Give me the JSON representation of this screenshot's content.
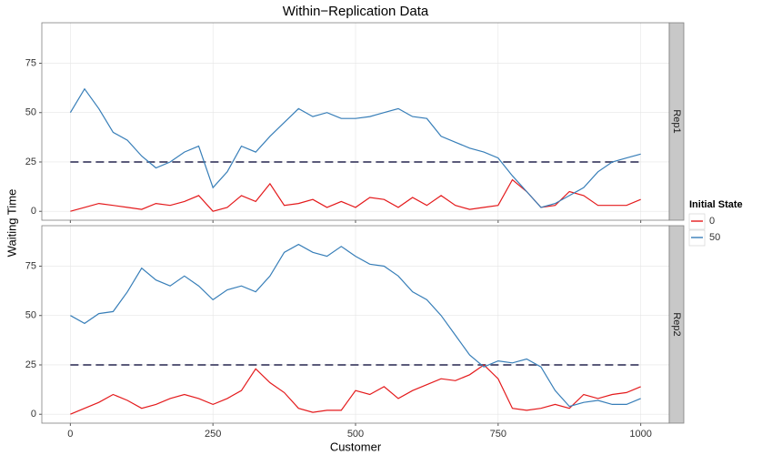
{
  "chart_data": {
    "type": "line",
    "title": "Within−Replication Data",
    "x_label": "Customer",
    "y_label": "Waiting Time",
    "legend_title": "Initial State",
    "x": [
      0,
      25,
      50,
      75,
      100,
      125,
      150,
      175,
      200,
      225,
      250,
      275,
      300,
      325,
      350,
      375,
      400,
      425,
      450,
      475,
      500,
      525,
      550,
      575,
      600,
      625,
      650,
      675,
      700,
      725,
      750,
      775,
      800,
      825,
      850,
      875,
      900,
      925,
      950,
      975,
      1000
    ],
    "xlim": [
      -50,
      1050
    ],
    "xticks": [
      0,
      250,
      500,
      750,
      1000
    ],
    "ylim": [
      -4.5,
      95.5
    ],
    "yticks": [
      0,
      25,
      50,
      75
    ],
    "grid": true,
    "reference_line": 25,
    "reference_color": "#5b5b7a",
    "series": [
      {
        "name": "0",
        "color": "#e41a1c"
      },
      {
        "name": "50",
        "color": "#377eb8"
      }
    ],
    "facets": [
      {
        "label": "Rep1",
        "values": [
          [
            0,
            2,
            4,
            3,
            2,
            1,
            4,
            3,
            5,
            8,
            0,
            2,
            8,
            5,
            14,
            3,
            4,
            6,
            2,
            5,
            2,
            7,
            6,
            2,
            7,
            3,
            8,
            3,
            1,
            2,
            3,
            16,
            10,
            2,
            3,
            10,
            8,
            3,
            3,
            3,
            6
          ],
          [
            50,
            62,
            52,
            40,
            36,
            28,
            22,
            25,
            30,
            33,
            12,
            20,
            33,
            30,
            38,
            45,
            52,
            48,
            50,
            47,
            47,
            48,
            50,
            52,
            48,
            47,
            38,
            35,
            32,
            30,
            27,
            18,
            10,
            2,
            4,
            8,
            12,
            20,
            25,
            27,
            29
          ]
        ]
      },
      {
        "label": "Rep2",
        "values": [
          [
            0,
            3,
            6,
            10,
            7,
            3,
            5,
            8,
            10,
            8,
            5,
            8,
            12,
            23,
            16,
            11,
            3,
            1,
            2,
            2,
            12,
            10,
            14,
            8,
            12,
            15,
            18,
            17,
            20,
            25,
            18,
            3,
            2,
            3,
            5,
            3,
            10,
            8,
            10,
            11,
            14
          ],
          [
            50,
            46,
            51,
            52,
            62,
            74,
            68,
            65,
            70,
            65,
            58,
            63,
            65,
            62,
            70,
            82,
            86,
            82,
            80,
            85,
            80,
            76,
            75,
            70,
            62,
            58,
            50,
            40,
            30,
            24,
            27,
            26,
            28,
            24,
            12,
            4,
            6,
            7,
            5,
            5,
            8
          ]
        ]
      }
    ]
  }
}
